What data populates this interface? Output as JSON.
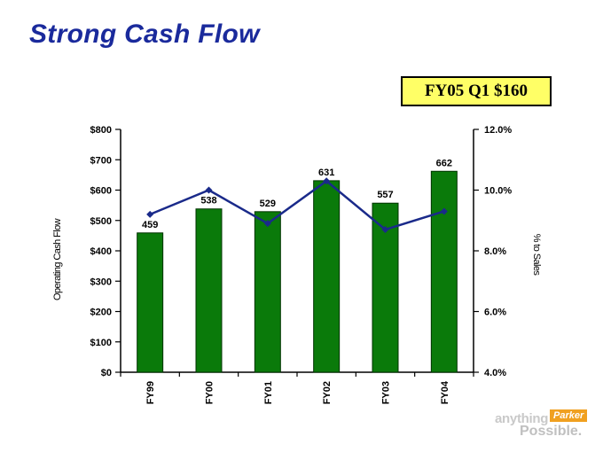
{
  "slide": {
    "title": "Strong Cash Flow",
    "callout": "FY05 Q1 $160",
    "logo": {
      "line1": "anything",
      "brand": "Parker",
      "line2": "Possible."
    }
  },
  "colors": {
    "title": "#1a2a9c",
    "bar": "#0a7a0a",
    "line": "#1a2a8a",
    "callout_bg": "#ffff66"
  },
  "chart_data": {
    "type": "bar",
    "categories": [
      "FY99",
      "FY00",
      "FY01",
      "FY02",
      "FY03",
      "FY04"
    ],
    "series": [
      {
        "name": "Operating Cash Flow",
        "axis": "left",
        "type": "bar",
        "values": [
          459,
          538,
          529,
          631,
          557,
          662
        ],
        "labels": [
          "459",
          "538",
          "529",
          "631",
          "557",
          "662"
        ]
      },
      {
        "name": "% to Sales",
        "axis": "right",
        "type": "line",
        "values": [
          9.2,
          10.0,
          8.9,
          10.3,
          8.7,
          9.3
        ]
      }
    ],
    "ylabel": "Operating Cash Flow",
    "y2label": "% to Sales",
    "ylim": [
      0,
      800
    ],
    "y2lim": [
      4.0,
      12.0
    ],
    "yticks": [
      0,
      100,
      200,
      300,
      400,
      500,
      600,
      700,
      800
    ],
    "ytick_labels": [
      "$0",
      "$100",
      "$200",
      "$300",
      "$400",
      "$500",
      "$600",
      "$700",
      "$800"
    ],
    "y2ticks": [
      4,
      6,
      8,
      10,
      12
    ],
    "y2tick_labels": [
      "4.0%",
      "6.0%",
      "8.0%",
      "10.0%",
      "12.0%"
    ],
    "grid": false
  }
}
